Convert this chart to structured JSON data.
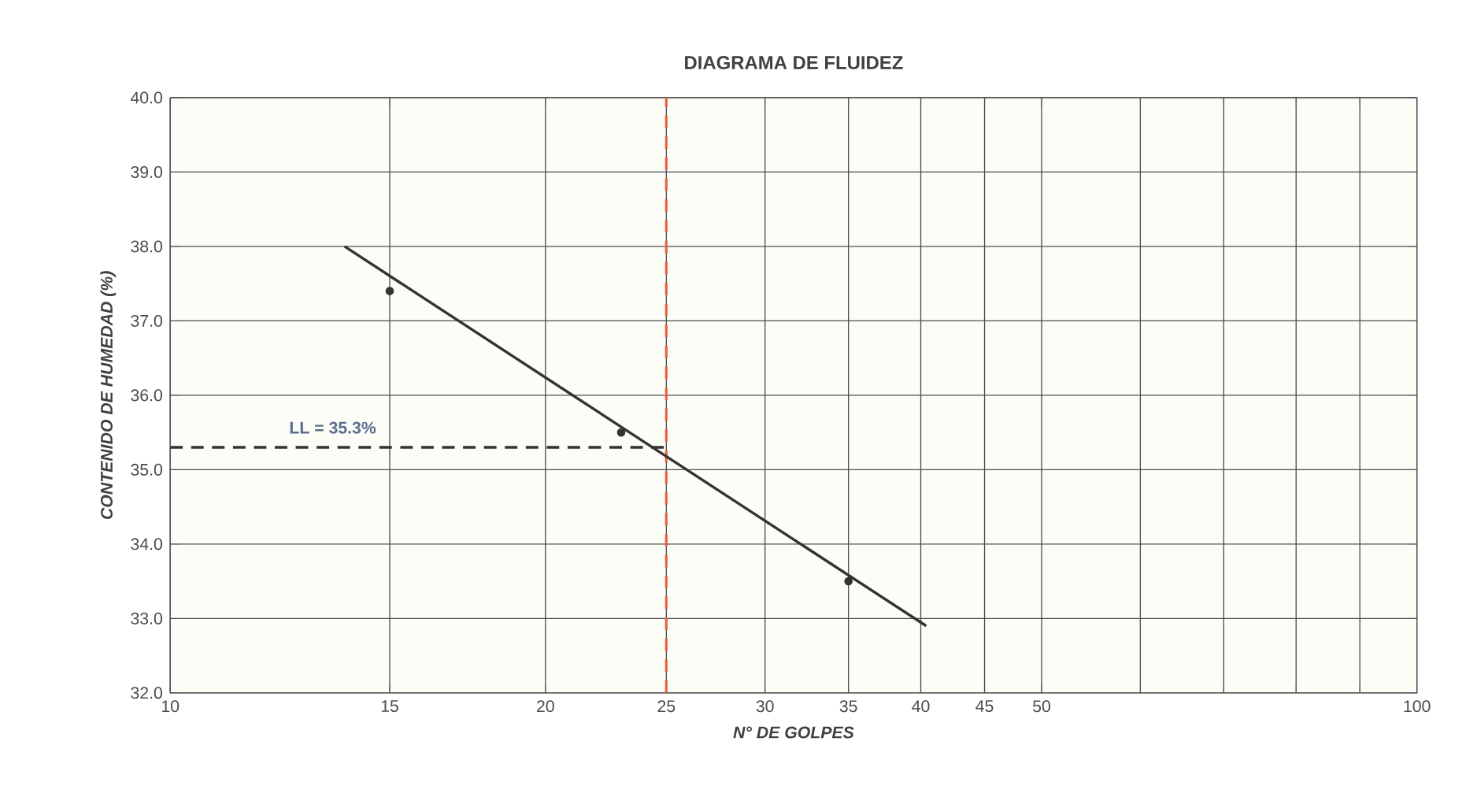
{
  "chart_data": {
    "type": "scatter",
    "title": "DIAGRAMA DE FLUIDEZ",
    "xlabel": "N° DE GOLPES",
    "ylabel": "CONTENIDO DE HUMEDAD (%)",
    "log": "x",
    "grid": true,
    "xlim": [
      10,
      100
    ],
    "ylim": [
      32,
      40
    ],
    "xticks": [
      10,
      15,
      20,
      {
        "value": 25,
        "label": "25"
      },
      30,
      35,
      40,
      45,
      50,
      {
        "value": 60,
        "label": null
      },
      {
        "value": 70,
        "label": null
      },
      {
        "value": 80,
        "label": null
      },
      {
        "value": 90,
        "label": null
      },
      100
    ],
    "yticks": [
      {
        "value": 32,
        "label": "32.0"
      },
      {
        "value": 33,
        "label": "33.0"
      },
      {
        "value": 34,
        "label": "34.0"
      },
      {
        "value": 35,
        "label": "35.0"
      },
      {
        "value": 36,
        "label": "36.0"
      },
      {
        "value": 37,
        "label": "37.0"
      },
      {
        "value": 38,
        "label": "38.0"
      },
      {
        "value": 39,
        "label": "39.0"
      },
      {
        "value": 40,
        "label": "40.0"
      }
    ],
    "series": [
      {
        "color": "#333333",
        "marker": "circle",
        "x": [
          15,
          23,
          35
        ],
        "values": [
          37.4,
          35.5,
          33.5
        ]
      },
      {
        "type": "line",
        "color": "#333333",
        "marker": "none",
        "line_style": "solid",
        "x": [
          13.8,
          40.4
        ],
        "values": [
          38.0,
          32.9
        ]
      },
      {
        "type": "line",
        "color": "#333333",
        "marker": "none",
        "line_style": "dashed",
        "x": [
          10,
          25
        ],
        "values": [
          35.3,
          35.3
        ]
      }
    ],
    "ref_lines": [
      {
        "axis": "x",
        "value": 25,
        "color": "#e8603c",
        "line_style": "dashed"
      }
    ],
    "annotations": [
      {
        "text": "LL = 35.3%",
        "x": 13.5,
        "y": 35.3
      }
    ]
  }
}
